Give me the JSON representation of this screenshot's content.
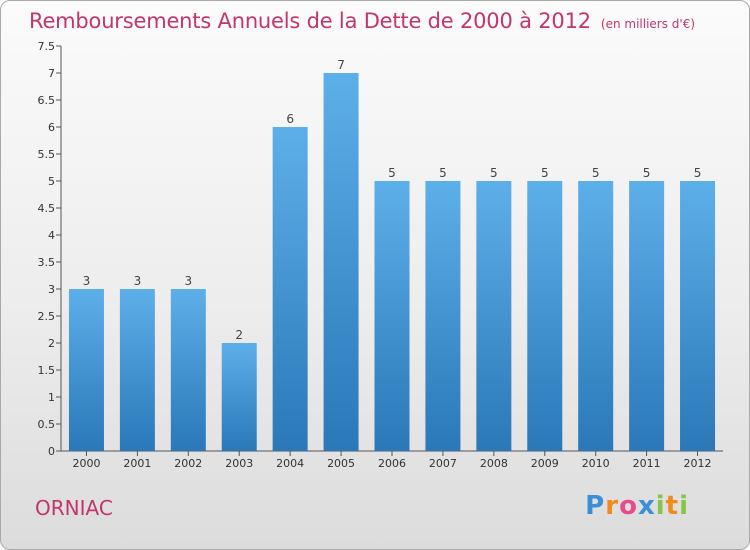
{
  "chart_data": {
    "type": "bar",
    "title": "Remboursements Annuels de la Dette de 2000 à 2012",
    "subtitle": "(en milliers d'€)",
    "categories": [
      "2000",
      "2001",
      "2002",
      "2003",
      "2004",
      "2005",
      "2006",
      "2007",
      "2008",
      "2009",
      "2010",
      "2011",
      "2012"
    ],
    "values": [
      3,
      3,
      3,
      2,
      6,
      7,
      5,
      5,
      5,
      5,
      5,
      5,
      5
    ],
    "ylim": [
      0,
      7.5
    ],
    "yticks": [
      "0",
      "0.5",
      "1",
      "1.5",
      "2",
      "2.5",
      "3",
      "3.5",
      "4",
      "4.5",
      "5",
      "5.5",
      "6",
      "6.5",
      "7",
      "7.5"
    ],
    "xlabel": "",
    "ylabel": "",
    "grid": false
  },
  "footer": {
    "commune": "ORNIAC",
    "brand_letters": [
      "P",
      "r",
      "o",
      "x",
      "i",
      "t",
      "i"
    ]
  },
  "colors": {
    "title": "#c2356e",
    "bar_top": "#5dafe9",
    "bar_bottom": "#2a78b8",
    "axis": "#555555",
    "brand": [
      "#3a8fd8",
      "#f08a1c",
      "#e84a8c",
      "#3a8fd8",
      "#8bc34a",
      "#f08a1c",
      "#8bc34a"
    ]
  }
}
